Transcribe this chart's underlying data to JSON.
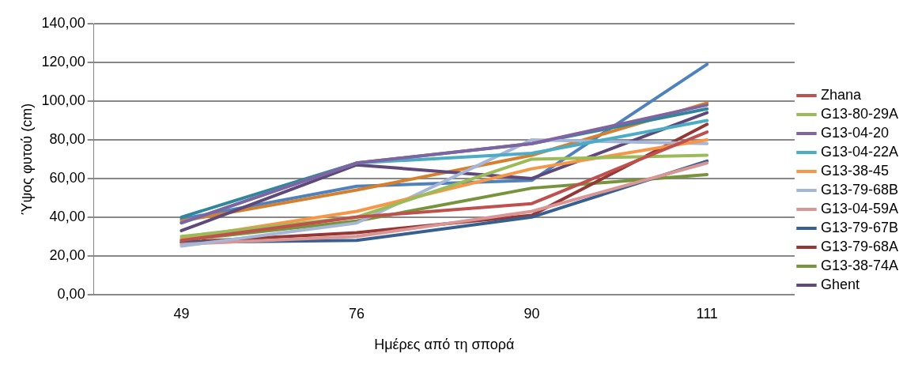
{
  "chart_data": {
    "type": "line",
    "xlabel": "Ημέρες από τη σπορά",
    "ylabel": "Ύψος φυτού (cm)",
    "categories": [
      "49",
      "76",
      "90",
      "111"
    ],
    "ylim": [
      0,
      140
    ],
    "yticks": [
      {
        "value": 0,
        "label": "0,00"
      },
      {
        "value": 20,
        "label": "20,00"
      },
      {
        "value": 40,
        "label": "40,00"
      },
      {
        "value": 60,
        "label": "60,00"
      },
      {
        "value": 80,
        "label": "80,00"
      },
      {
        "value": 100,
        "label": "100,00"
      },
      {
        "value": 120,
        "label": "120,00"
      },
      {
        "value": 140,
        "label": "140,00"
      }
    ],
    "grid": "y",
    "legend": "right",
    "marker": "none",
    "line_style": "solid",
    "series": [
      {
        "name": "Zhana",
        "color": "#c0504d",
        "values": [
          28,
          40,
          47,
          84
        ]
      },
      {
        "name": "G13-80-29A",
        "color": "#9bbb59",
        "values": [
          30,
          40,
          70,
          72
        ]
      },
      {
        "name": "G13-04-20",
        "color": "#8064a2",
        "values": [
          37,
          68,
          78,
          98
        ]
      },
      {
        "name": "G13-04-22A",
        "color": "#4bacc6",
        "values": [
          37,
          68,
          73,
          90
        ]
      },
      {
        "name": "G13-38-45",
        "color": "#f79646",
        "values": [
          29,
          43,
          65,
          80
        ]
      },
      {
        "name": "G13-79-68B",
        "color": "#a5b6d6",
        "values": [
          25,
          37,
          80,
          78
        ]
      },
      {
        "name": "G13-04-59A",
        "color": "#d99694",
        "values": [
          26,
          30,
          43,
          68
        ]
      },
      {
        "name": "G13-79-67B",
        "color": "#376092",
        "values": [
          27,
          28,
          40,
          69
        ]
      },
      {
        "name": "G13-79-68A",
        "color": "#953735",
        "values": [
          27,
          32,
          41,
          88
        ]
      },
      {
        "name": "G13-38-74A",
        "color": "#77933c",
        "values": [
          28,
          38,
          55,
          62
        ]
      },
      {
        "name": "Ghent",
        "color": "#5f497a",
        "values": [
          33,
          67,
          60,
          94
        ]
      },
      {
        "color": "#31859c",
        "values": [
          40,
          68,
          78,
          96
        ]
      },
      {
        "color": "#d6802f",
        "values": [
          38,
          54,
          72,
          99
        ]
      },
      {
        "color": "#4f81bd",
        "values": [
          39,
          56,
          59,
          119
        ]
      }
    ]
  }
}
